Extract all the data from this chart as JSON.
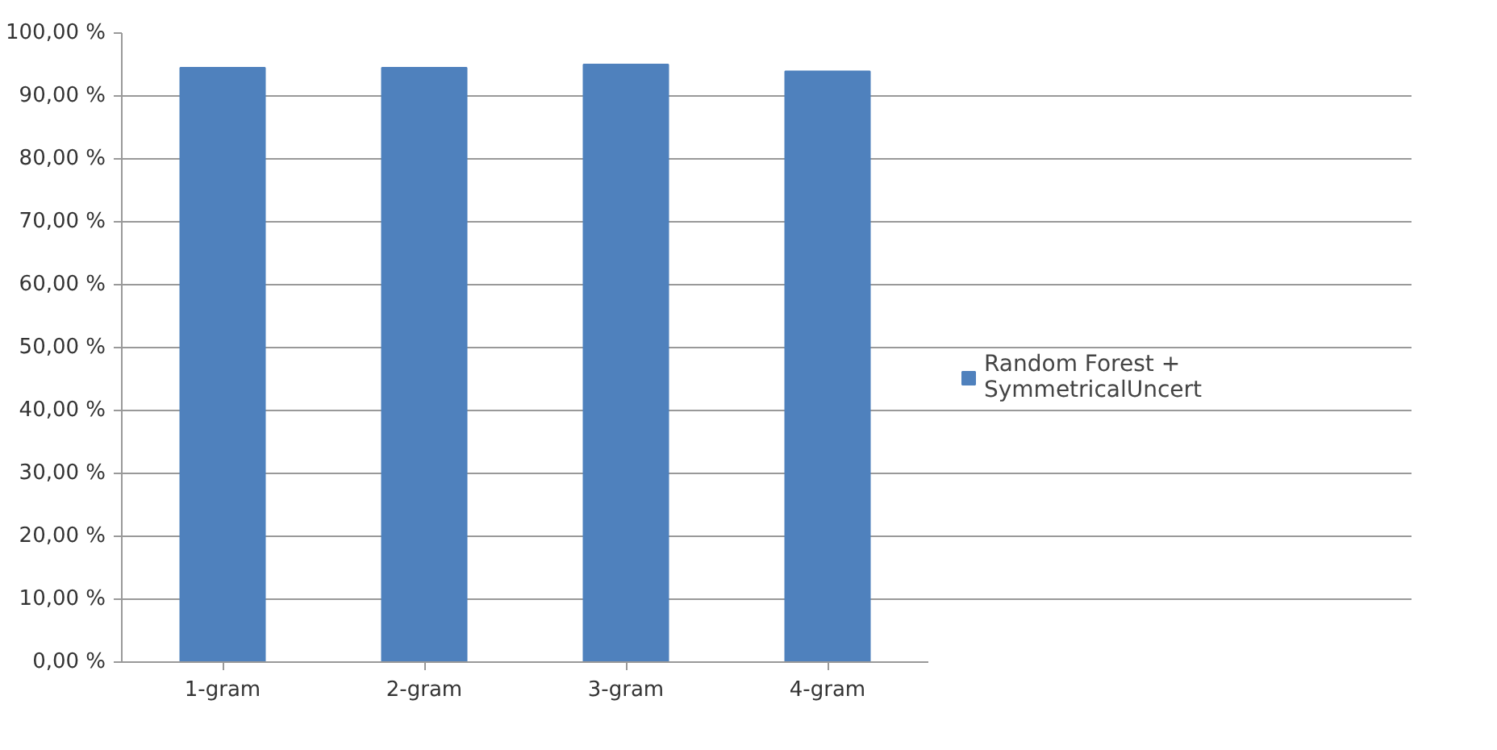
{
  "chart_data": {
    "type": "bar",
    "categories": [
      "1-gram",
      "2-gram",
      "3-gram",
      "4-gram"
    ],
    "series": [
      {
        "name": "Random Forest + SymmetricalUncert",
        "color": "#4f81bd",
        "values": [
          94.5,
          94.5,
          95.0,
          93.9
        ]
      }
    ],
    "ylim": [
      0,
      100
    ],
    "yticks": [
      {
        "value": 0,
        "label": "0,00 %"
      },
      {
        "value": 10,
        "label": "10,00 %"
      },
      {
        "value": 20,
        "label": "20,00 %"
      },
      {
        "value": 30,
        "label": "30,00 %"
      },
      {
        "value": 40,
        "label": "40,00 %"
      },
      {
        "value": 50,
        "label": "50,00 %"
      },
      {
        "value": 60,
        "label": "60,00 %"
      },
      {
        "value": 70,
        "label": "70,00 %"
      },
      {
        "value": 80,
        "label": "80,00 %"
      },
      {
        "value": 90,
        "label": "90,00 %"
      },
      {
        "value": 100,
        "label": "100,00 %"
      }
    ],
    "grid": "y",
    "legend": "right"
  }
}
